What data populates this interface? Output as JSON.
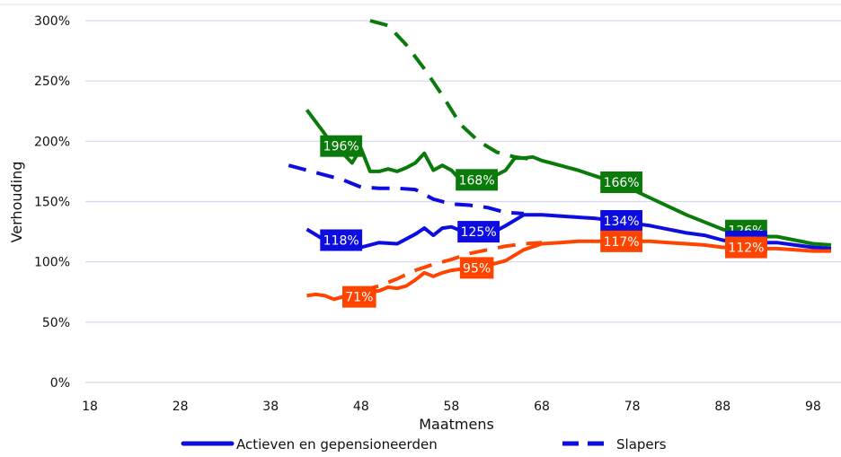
{
  "chart_data": {
    "type": "line",
    "title": "",
    "xlabel": "Maatmens",
    "ylabel": "Verhouding",
    "xlim": [
      18,
      100
    ],
    "ylim": [
      0,
      300
    ],
    "x_ticks": [
      18,
      28,
      38,
      48,
      58,
      68,
      78,
      88,
      98
    ],
    "y_ticks": [
      0,
      50,
      100,
      150,
      200,
      250,
      300
    ],
    "y_tick_labels": [
      "0%",
      "50%",
      "100%",
      "150%",
      "200%",
      "250%",
      "300%"
    ],
    "grid": "horizontal",
    "legend_position": "bottom",
    "legend": [
      {
        "label": "Actieven en gepensioneerden",
        "style": "solid"
      },
      {
        "label": "Slapers",
        "style": "dashed"
      }
    ],
    "series": [
      {
        "group": "actieven",
        "style": "solid",
        "color": "#0a7a0a",
        "x": [
          42,
          44,
          45,
          46,
          47,
          48,
          49,
          50,
          51,
          52,
          53,
          54,
          55,
          56,
          57,
          58,
          59,
          60,
          61,
          62,
          63,
          64,
          65,
          66,
          67,
          68,
          70,
          72,
          74,
          76,
          78,
          80,
          82,
          84,
          86,
          88,
          90,
          92,
          94,
          96,
          98,
          100
        ],
        "y": [
          226,
          206,
          194,
          190,
          182,
          194,
          175,
          175,
          177,
          175,
          178,
          182,
          190,
          176,
          180,
          176,
          168,
          168,
          170,
          170,
          172,
          176,
          186,
          186,
          187,
          184,
          180,
          176,
          171,
          166,
          160,
          153,
          146,
          139,
          133,
          127,
          123,
          121,
          121,
          118,
          115,
          114
        ]
      },
      {
        "group": "actieven",
        "style": "solid",
        "color": "#0d0de0",
        "x": [
          42,
          44,
          46,
          48,
          50,
          52,
          54,
          55,
          56,
          57,
          58,
          60,
          62,
          64,
          66,
          68,
          70,
          72,
          74,
          76,
          78,
          80,
          82,
          84,
          86,
          88,
          90,
          92,
          94,
          96,
          98,
          100
        ],
        "y": [
          127,
          118,
          118,
          112,
          116,
          115,
          123,
          128,
          122,
          128,
          129,
          123,
          122,
          130,
          139,
          139,
          138,
          137,
          136,
          134,
          132,
          130,
          127,
          124,
          122,
          118,
          116,
          116,
          116,
          114,
          112,
          111
        ]
      },
      {
        "group": "actieven",
        "style": "solid",
        "color": "#ff4400",
        "x": [
          42,
          43,
          44,
          45,
          46,
          47,
          48,
          49,
          50,
          51,
          52,
          53,
          54,
          55,
          56,
          57,
          58,
          60,
          62,
          64,
          66,
          68,
          70,
          72,
          74,
          76,
          78,
          80,
          82,
          84,
          86,
          88,
          90,
          92,
          94,
          96,
          98,
          100
        ],
        "y": [
          72,
          73,
          72,
          69,
          71,
          71,
          73,
          75,
          76,
          79,
          78,
          80,
          85,
          91,
          88,
          91,
          93,
          95,
          97,
          101,
          110,
          115,
          116,
          117,
          117,
          117,
          117,
          117,
          116,
          115,
          114,
          112,
          112,
          111,
          111,
          110,
          109,
          109
        ]
      },
      {
        "group": "slapers",
        "style": "dashed",
        "color": "#0a7a0a",
        "x": [
          49,
          51,
          53,
          55,
          57,
          59,
          61,
          63,
          65,
          67
        ],
        "y": [
          300,
          296,
          280,
          260,
          238,
          214,
          200,
          191,
          187,
          185
        ]
      },
      {
        "group": "slapers",
        "style": "dashed",
        "color": "#0d0de0",
        "x": [
          40,
          42,
          44,
          46,
          48,
          50,
          52,
          54,
          56,
          58,
          60,
          62,
          64,
          66
        ],
        "y": [
          180,
          176,
          172,
          168,
          162,
          161,
          161,
          160,
          152,
          148,
          147,
          145,
          141,
          140
        ]
      },
      {
        "group": "slapers",
        "style": "dashed",
        "color": "#ff4400",
        "x": [
          48,
          50,
          52,
          54,
          56,
          58,
          60,
          62,
          64,
          66,
          68
        ],
        "y": [
          76,
          80,
          86,
          93,
          98,
          102,
          107,
          110,
          113,
          115,
          116
        ]
      }
    ],
    "data_labels": [
      {
        "x": 45.8,
        "y": 196,
        "text": "196%",
        "color": "#0a7a0a"
      },
      {
        "x": 60.8,
        "y": 168,
        "text": "168%",
        "color": "#0a7a0a"
      },
      {
        "x": 76.8,
        "y": 166,
        "text": "166%",
        "color": "#0a7a0a"
      },
      {
        "x": 90.6,
        "y": 126,
        "text": "126%",
        "color": "#0a7a0a"
      },
      {
        "x": 45.8,
        "y": 118,
        "text": "118%",
        "color": "#0d0de0"
      },
      {
        "x": 61.0,
        "y": 125,
        "text": "125%",
        "color": "#0d0de0"
      },
      {
        "x": 76.8,
        "y": 134,
        "text": "134%",
        "color": "#0d0de0"
      },
      {
        "x": 90.6,
        "y": 117,
        "text": "117%",
        "color": "#0d0de0"
      },
      {
        "x": 47.8,
        "y": 71,
        "text": "71%",
        "color": "#ff4400"
      },
      {
        "x": 60.8,
        "y": 95,
        "text": "95%",
        "color": "#ff4400"
      },
      {
        "x": 76.8,
        "y": 117,
        "text": "117%",
        "color": "#ff4400"
      },
      {
        "x": 90.6,
        "y": 112,
        "text": "112%",
        "color": "#ff4400"
      }
    ]
  }
}
